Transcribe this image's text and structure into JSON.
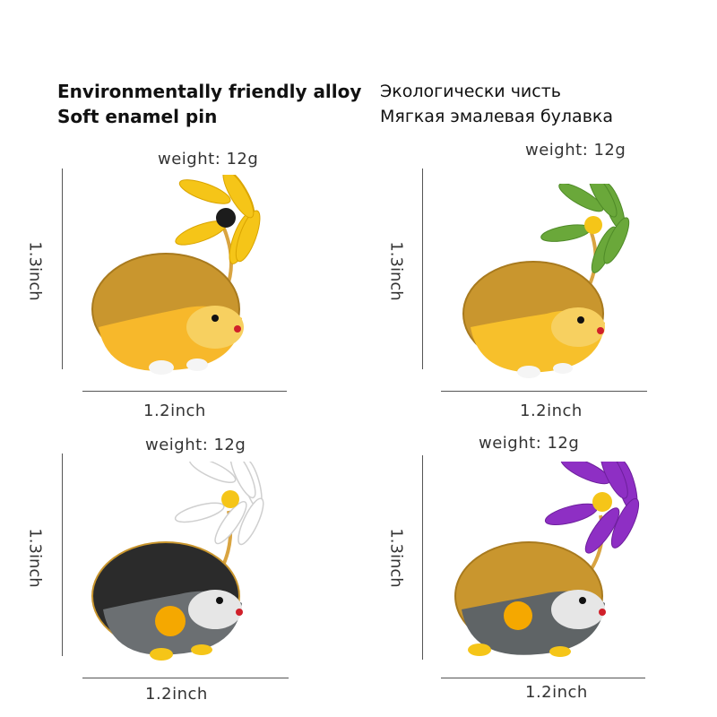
{
  "header": {
    "en_line1": "Environmentally friendly alloy",
    "en_line2": "Soft enamel pin",
    "ru_line1": "Экологически чисть",
    "ru_line2": "Мягкая эмалевая булавка"
  },
  "products": [
    {
      "weight": "weight: 12g",
      "height": "1.3inch",
      "width": "1.2inch",
      "flower_color": "#f5c518",
      "body_color": "#f7b82b",
      "spike_color": "#c9962e"
    },
    {
      "weight": "weight: 12g",
      "height": "1.3inch",
      "width": "1.2inch",
      "flower_color": "#6aa83a",
      "body_color": "#f7c02b",
      "spike_color": "#c9962e"
    },
    {
      "weight": "weight: 12g",
      "height": "1.3inch",
      "width": "1.2inch",
      "flower_color": "#ffffff",
      "body_color": "#6b6f72",
      "spike_color": "#2b2b2b"
    },
    {
      "weight": "weight: 12g",
      "height": "1.3inch",
      "width": "1.2inch",
      "flower_color": "#8e2fc4",
      "body_color": "#5f6466",
      "spike_color": "#c9962e"
    }
  ]
}
